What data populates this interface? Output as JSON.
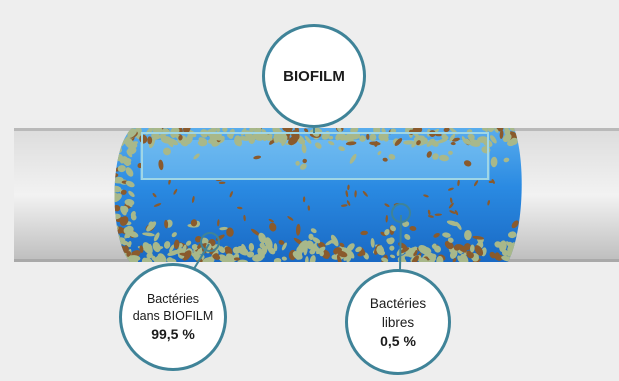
{
  "colors": {
    "background": "#eeeeee",
    "accent_ring": "#3f8398",
    "water": "#2a88e0",
    "water_light": "#7cc4f4",
    "biofilm": "#a8b88a",
    "bacteria": "#8a5a2c",
    "pipe": "#cfcfcf"
  },
  "labels": {
    "biofilm_title": "BIOFILM",
    "biofilm_bacteria_line1": "Bactéries",
    "biofilm_bacteria_line2": "dans BIOFILM",
    "biofilm_bacteria_pct": "99,5 %",
    "free_bacteria_line1": "Bactéries",
    "free_bacteria_line2": "libres",
    "free_bacteria_pct": "0,5 %"
  }
}
